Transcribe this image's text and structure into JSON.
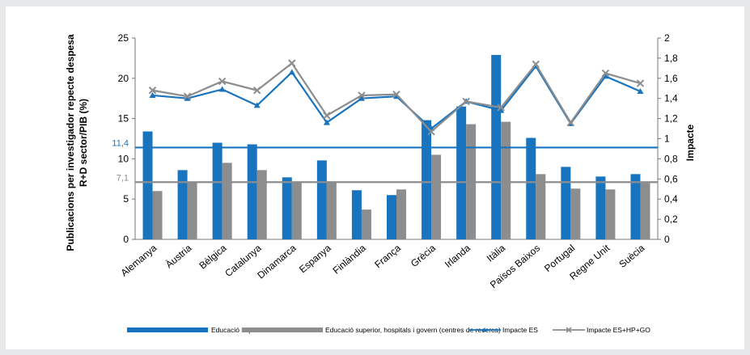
{
  "chart_data": {
    "type": "bar",
    "categories": [
      "Alemanya",
      "Àustria",
      "Bèlgica",
      "Catalunya",
      "Dinamarca",
      "Espanya",
      "Finlàndia",
      "França",
      "Grècia",
      "Irlanda",
      "Itàlia",
      "Països Baixos",
      "Portugal",
      "Regne Unit",
      "Suècia"
    ],
    "bar_series": [
      {
        "name": "Educació superior",
        "color": "#1874be",
        "values": [
          13.4,
          8.6,
          12.0,
          11.8,
          7.7,
          9.8,
          6.1,
          5.5,
          14.8,
          16.5,
          22.9,
          12.6,
          9.0,
          7.8,
          8.1
        ]
      },
      {
        "name": "Educació superior, hospitals i govern (centres de recerca)",
        "color": "#8c8d8f",
        "values": [
          6.0,
          7.1,
          9.5,
          8.6,
          7.1,
          7.2,
          3.7,
          6.2,
          10.5,
          14.3,
          14.6,
          8.1,
          6.3,
          6.2,
          7.0
        ]
      }
    ],
    "line_series": [
      {
        "name": "Impacte ES",
        "color": "#1874be",
        "marker": "triangle",
        "values": [
          1.43,
          1.4,
          1.49,
          1.33,
          1.66,
          1.16,
          1.4,
          1.42,
          1.1,
          1.37,
          1.28,
          1.72,
          1.15,
          1.62,
          1.47
        ]
      },
      {
        "name": "Impacte ES+HP+GO",
        "color": "#8c8d8f",
        "marker": "x",
        "values": [
          1.48,
          1.42,
          1.57,
          1.48,
          1.75,
          1.23,
          1.43,
          1.44,
          1.07,
          1.37,
          1.31,
          1.74,
          1.16,
          1.65,
          1.55
        ]
      }
    ],
    "reference_lines": [
      {
        "value": 11.4,
        "label": "11,4",
        "color": "#1874be"
      },
      {
        "value": 7.1,
        "label": "7,1",
        "color": "#8c8d8f"
      }
    ],
    "ylabel_left_line1": "Publicacions per investigador repecte despesa",
    "ylabel_left_line2": "R+D sector/PIB (%)",
    "ylabel_right": "Impacte",
    "ylim_left": [
      0,
      25
    ],
    "yticks_left": [
      "0",
      "5",
      "10",
      "15",
      "20",
      "25"
    ],
    "ylim_right": [
      0,
      2
    ],
    "yticks_right": [
      "0",
      "0,2",
      "0,4",
      "0,6",
      "0,8",
      "1",
      "1,2",
      "1,4",
      "1,6",
      "1,8",
      "2"
    ],
    "grid": false,
    "legend_position": "bottom"
  }
}
